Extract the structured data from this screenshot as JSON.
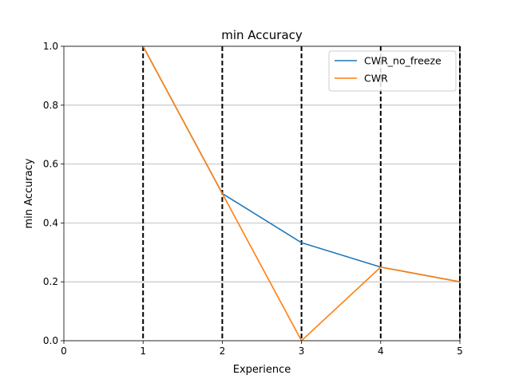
{
  "chart_data": {
    "type": "line",
    "title": "min Accuracy",
    "xlabel": "Experience",
    "ylabel": "min Accuracy",
    "xlim": [
      0,
      5
    ],
    "ylim": [
      0,
      1.0
    ],
    "xticks": [
      0,
      1,
      2,
      3,
      4,
      5
    ],
    "yticks": [
      0.0,
      0.2,
      0.4,
      0.6,
      0.8,
      1.0
    ],
    "ytick_labels": [
      "0.0",
      "0.2",
      "0.4",
      "0.6",
      "0.8",
      "1.0"
    ],
    "grid": "horizontal",
    "vertical_dashed_lines": [
      1,
      2,
      3,
      4,
      5
    ],
    "legend_position": "top-right",
    "series": [
      {
        "name": "CWR_no_freeze",
        "color": "#1f77b4",
        "x": [
          1,
          2,
          3,
          4,
          5
        ],
        "values": [
          1.0,
          0.5,
          0.333,
          0.25,
          0.2
        ]
      },
      {
        "name": "CWR",
        "color": "#ff7f0e",
        "x": [
          1,
          2,
          3,
          4,
          5
        ],
        "values": [
          1.0,
          0.5,
          0.0,
          0.25,
          0.2
        ]
      }
    ]
  }
}
